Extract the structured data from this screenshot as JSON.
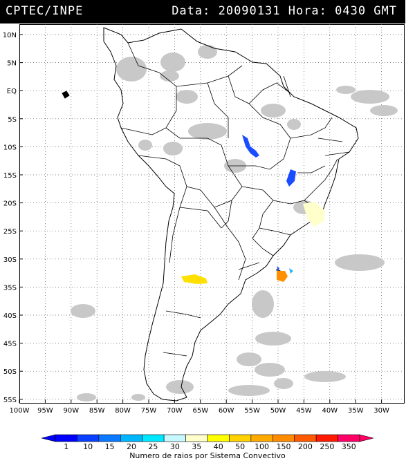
{
  "header": {
    "org": "CPTEC/INPE",
    "datetime": "Data: 20090131 Hora: 0430 GMT"
  },
  "lat_labels": [
    "10N",
    "5N",
    "EQ",
    "5S",
    "10S",
    "15S",
    "20S",
    "25S",
    "30S",
    "35S",
    "40S",
    "45S",
    "50S",
    "55S"
  ],
  "lon_labels": [
    "100W",
    "95W",
    "90W",
    "85W",
    "80W",
    "75W",
    "70W",
    "65W",
    "60W",
    "55W",
    "50W",
    "45W",
    "40W",
    "35W",
    "30W"
  ],
  "legend": {
    "title": "Numero de raios por Sistema Convectivo",
    "values": [
      "1",
      "10",
      "15",
      "20",
      "25",
      "30",
      "35",
      "40",
      "50",
      "100",
      "150",
      "200",
      "250",
      "350"
    ],
    "colors": [
      "#0000ff",
      "#0b3fff",
      "#0a78ff",
      "#00b7ff",
      "#00e8ff",
      "#c8f8ff",
      "#ffffcc",
      "#ffff00",
      "#ffd200",
      "#ffaa00",
      "#ff8c00",
      "#ff5a00",
      "#ff1a00",
      "#ff0066"
    ]
  }
}
